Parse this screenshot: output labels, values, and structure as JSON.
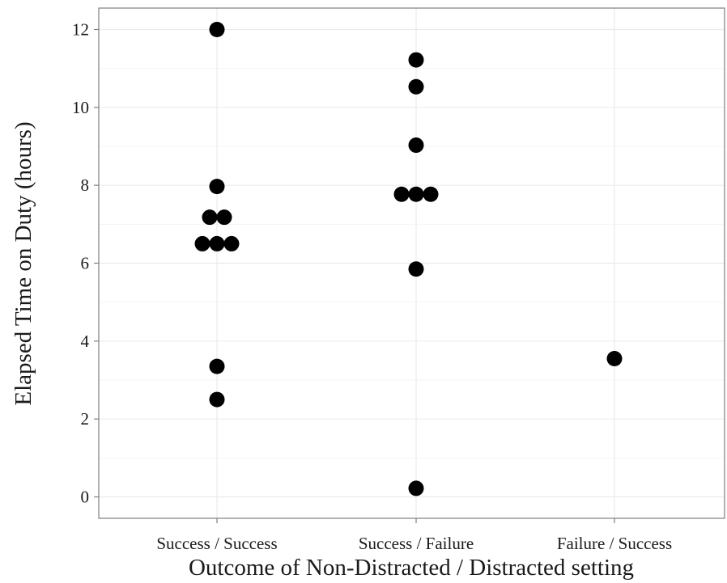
{
  "chart_data": {
    "type": "scatter",
    "title": "",
    "xlabel": "Outcome of Non-Distracted / Distracted setting",
    "ylabel": "Elapsed Time on Duty (hours)",
    "categories": [
      "Success / Success",
      "Success / Failure",
      "Failure / Success"
    ],
    "y_ticks": [
      0,
      2,
      4,
      6,
      8,
      10,
      12
    ],
    "y_tick_labels": [
      "0",
      "2",
      "4",
      "6",
      "8",
      "10",
      "12"
    ],
    "ylim": [
      -0.55,
      12.55
    ],
    "grid": true,
    "points": [
      {
        "category": "Success / Success",
        "y": 12.0
      },
      {
        "category": "Success / Success",
        "y": 7.97
      },
      {
        "category": "Success / Success",
        "y": 7.18
      },
      {
        "category": "Success / Success",
        "y": 7.18
      },
      {
        "category": "Success / Success",
        "y": 6.5
      },
      {
        "category": "Success / Success",
        "y": 6.5
      },
      {
        "category": "Success / Success",
        "y": 6.5
      },
      {
        "category": "Success / Success",
        "y": 3.35
      },
      {
        "category": "Success / Success",
        "y": 2.5
      },
      {
        "category": "Success / Failure",
        "y": 11.22
      },
      {
        "category": "Success / Failure",
        "y": 10.53
      },
      {
        "category": "Success / Failure",
        "y": 9.03
      },
      {
        "category": "Success / Failure",
        "y": 7.77
      },
      {
        "category": "Success / Failure",
        "y": 7.77
      },
      {
        "category": "Success / Failure",
        "y": 7.77
      },
      {
        "category": "Success / Failure",
        "y": 5.85
      },
      {
        "category": "Success / Failure",
        "y": 0.22
      },
      {
        "category": "Failure / Success",
        "y": 3.55
      }
    ],
    "colors": {
      "point": "#000000",
      "grid": "#ebebeb",
      "panel_border": "#7f7f7f",
      "background": "#ffffff"
    }
  }
}
